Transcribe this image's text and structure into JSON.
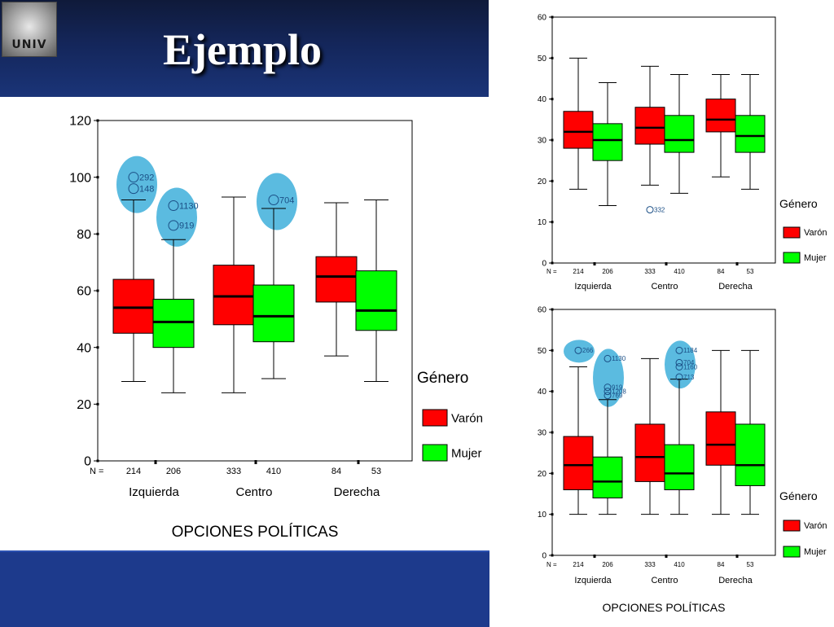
{
  "slide": {
    "title": "Ejemplo",
    "logo_text": "UNIV"
  },
  "colors": {
    "varon": "#ff0000",
    "mujer": "#00ff00",
    "outlier_highlight": "#5bbbe0",
    "header": "#14265a",
    "footer": "#1d3a8c"
  },
  "chart_data": [
    {
      "type": "box",
      "xlabel": "OPCIONES POLÍTICAS",
      "ylim": [
        0,
        120
      ],
      "yticks": [
        0,
        20,
        40,
        60,
        80,
        100,
        120
      ],
      "legend_title": "Género",
      "legend": [
        "Varón",
        "Mujer"
      ],
      "n_label": "N =",
      "categories": [
        "Izquierda",
        "Centro",
        "Derecha"
      ],
      "series": [
        {
          "name": "Varón",
          "n": [
            "214",
            "333",
            "84"
          ],
          "boxes": [
            {
              "min": 28,
              "q1": 45,
              "median": 54,
              "q3": 64,
              "max": 92,
              "outliers": [
                {
                  "v": 100,
                  "label": "292"
                },
                {
                  "v": 96,
                  "label": "148"
                }
              ]
            },
            {
              "min": 24,
              "q1": 48,
              "median": 58,
              "q3": 69,
              "max": 93,
              "outliers": []
            },
            {
              "min": 37,
              "q1": 56,
              "median": 65,
              "q3": 72,
              "max": 91,
              "outliers": []
            }
          ]
        },
        {
          "name": "Mujer",
          "n": [
            "206",
            "410",
            "53"
          ],
          "boxes": [
            {
              "min": 24,
              "q1": 40,
              "median": 49,
              "q3": 57,
              "max": 78,
              "outliers": [
                {
                  "v": 90,
                  "label": "1130"
                },
                {
                  "v": 83,
                  "label": "919"
                }
              ]
            },
            {
              "min": 29,
              "q1": 42,
              "median": 51,
              "q3": 62,
              "max": 89,
              "outliers": [
                {
                  "v": 92,
                  "label": "704"
                }
              ]
            },
            {
              "min": 28,
              "q1": 46,
              "median": 53,
              "q3": 67,
              "max": 92,
              "outliers": []
            }
          ]
        }
      ],
      "highlight_groups": [
        {
          "series": 0,
          "category": 0
        },
        {
          "series": 1,
          "category": 0
        },
        {
          "series": 1,
          "category": 1
        }
      ]
    },
    {
      "type": "box",
      "xlabel": "",
      "ylim": [
        0,
        60
      ],
      "yticks": [
        0,
        10,
        20,
        30,
        40,
        50,
        60
      ],
      "legend_title": "Género",
      "legend": [
        "Varón",
        "Mujer"
      ],
      "n_label": "N =",
      "categories": [
        "Izquierda",
        "Centro",
        "Derecha"
      ],
      "series": [
        {
          "name": "Varón",
          "n": [
            "214",
            "333",
            "84"
          ],
          "boxes": [
            {
              "min": 18,
              "q1": 28,
              "median": 32,
              "q3": 37,
              "max": 50,
              "outliers": []
            },
            {
              "min": 19,
              "q1": 29,
              "median": 33,
              "q3": 38,
              "max": 48,
              "outliers": [
                {
                  "v": 13,
                  "label": "332"
                }
              ]
            },
            {
              "min": 21,
              "q1": 32,
              "median": 35,
              "q3": 40,
              "max": 46,
              "outliers": []
            }
          ]
        },
        {
          "name": "Mujer",
          "n": [
            "206",
            "410",
            "53"
          ],
          "boxes": [
            {
              "min": 14,
              "q1": 25,
              "median": 30,
              "q3": 34,
              "max": 44,
              "outliers": []
            },
            {
              "min": 17,
              "q1": 27,
              "median": 30,
              "q3": 36,
              "max": 46,
              "outliers": []
            },
            {
              "min": 18,
              "q1": 27,
              "median": 31,
              "q3": 36,
              "max": 46,
              "outliers": []
            }
          ]
        }
      ],
      "highlight_groups": []
    },
    {
      "type": "box",
      "xlabel": "OPCIONES   POLÍTICAS",
      "ylim": [
        0,
        60
      ],
      "yticks": [
        0,
        10,
        20,
        30,
        40,
        50,
        60
      ],
      "legend_title": "Género",
      "legend": [
        "Varón",
        "Mujer"
      ],
      "n_label": "N =",
      "categories": [
        "Izquierda",
        "Centro",
        "Derecha"
      ],
      "series": [
        {
          "name": "Varón",
          "n": [
            "214",
            "333",
            "84"
          ],
          "boxes": [
            {
              "min": 10,
              "q1": 16,
              "median": 22,
              "q3": 29,
              "max": 46,
              "outliers": [
                {
                  "v": 50,
                  "label": "266"
                }
              ]
            },
            {
              "min": 10,
              "q1": 18,
              "median": 24,
              "q3": 32,
              "max": 48,
              "outliers": []
            },
            {
              "min": 10,
              "q1": 22,
              "median": 27,
              "q3": 35,
              "max": 50,
              "outliers": []
            }
          ]
        },
        {
          "name": "Mujer",
          "n": [
            "206",
            "410",
            "53"
          ],
          "boxes": [
            {
              "min": 10,
              "q1": 14,
              "median": 18,
              "q3": 24,
              "max": 38,
              "outliers": [
                {
                  "v": 48,
                  "label": "1130"
                },
                {
                  "v": 41,
                  "label": "919"
                },
                {
                  "v": 40,
                  "label": "1208"
                },
                {
                  "v": 39,
                  "label": "769"
                }
              ]
            },
            {
              "min": 10,
              "q1": 16,
              "median": 20,
              "q3": 27,
              "max": 43,
              "outliers": [
                {
                  "v": 50,
                  "label": "1184"
                },
                {
                  "v": 47,
                  "label": "704"
                },
                {
                  "v": 46,
                  "label": "1160"
                },
                {
                  "v": 43.5,
                  "label": "713"
                }
              ]
            },
            {
              "min": 10,
              "q1": 17,
              "median": 22,
              "q3": 32,
              "max": 50,
              "outliers": []
            }
          ]
        }
      ],
      "highlight_groups": [
        {
          "series": 0,
          "category": 0
        },
        {
          "series": 1,
          "category": 0
        },
        {
          "series": 1,
          "category": 1
        }
      ]
    }
  ]
}
